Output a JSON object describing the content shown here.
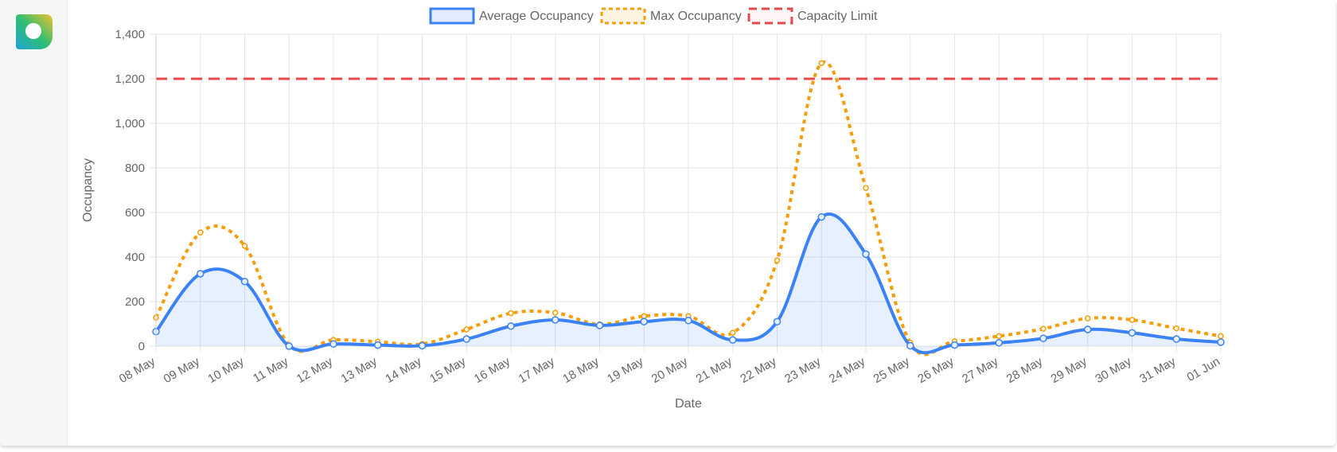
{
  "colors": {
    "average": "#3b82f6",
    "average_fill": "rgba(59,130,246,0.12)",
    "max": "#f59e0b",
    "capacity": "#e5484d",
    "grid": "#e5e5e5"
  },
  "chart_data": {
    "type": "line",
    "xlabel": "Date",
    "ylabel": "Occupancy",
    "ylim": [
      0,
      1400
    ],
    "yticks": [
      0,
      200,
      400,
      600,
      800,
      1000,
      1200,
      1400
    ],
    "ytick_labels": [
      "0",
      "200",
      "400",
      "600",
      "800",
      "1,000",
      "1,200",
      "1,400"
    ],
    "grid": true,
    "legend_position": "top",
    "categories": [
      "08 May",
      "09 May",
      "10 May",
      "11 May",
      "12 May",
      "13 May",
      "14 May",
      "15 May",
      "16 May",
      "17 May",
      "18 May",
      "19 May",
      "20 May",
      "21 May",
      "22 May",
      "23 May",
      "24 May",
      "25 May",
      "26 May",
      "27 May",
      "28 May",
      "29 May",
      "30 May",
      "31 May",
      "01 Jun"
    ],
    "series": [
      {
        "name": "Average Occupancy",
        "style": "solid-filled",
        "color": "#3b82f6",
        "values": [
          65,
          325,
          290,
          0,
          10,
          5,
          2,
          32,
          90,
          118,
          93,
          110,
          115,
          28,
          110,
          580,
          413,
          2,
          5,
          15,
          35,
          75,
          60,
          32,
          18
        ]
      },
      {
        "name": "Max Occupancy",
        "style": "dotted",
        "color": "#f59e0b",
        "values": [
          128,
          510,
          450,
          5,
          28,
          20,
          10,
          75,
          148,
          150,
          98,
          135,
          135,
          60,
          385,
          1270,
          710,
          15,
          22,
          45,
          78,
          125,
          118,
          80,
          45
        ]
      },
      {
        "name": "Capacity Limit",
        "style": "dashed",
        "color": "#e5484d",
        "values": [
          1200,
          1200,
          1200,
          1200,
          1200,
          1200,
          1200,
          1200,
          1200,
          1200,
          1200,
          1200,
          1200,
          1200,
          1200,
          1200,
          1200,
          1200,
          1200,
          1200,
          1200,
          1200,
          1200,
          1200,
          1200
        ]
      }
    ]
  }
}
